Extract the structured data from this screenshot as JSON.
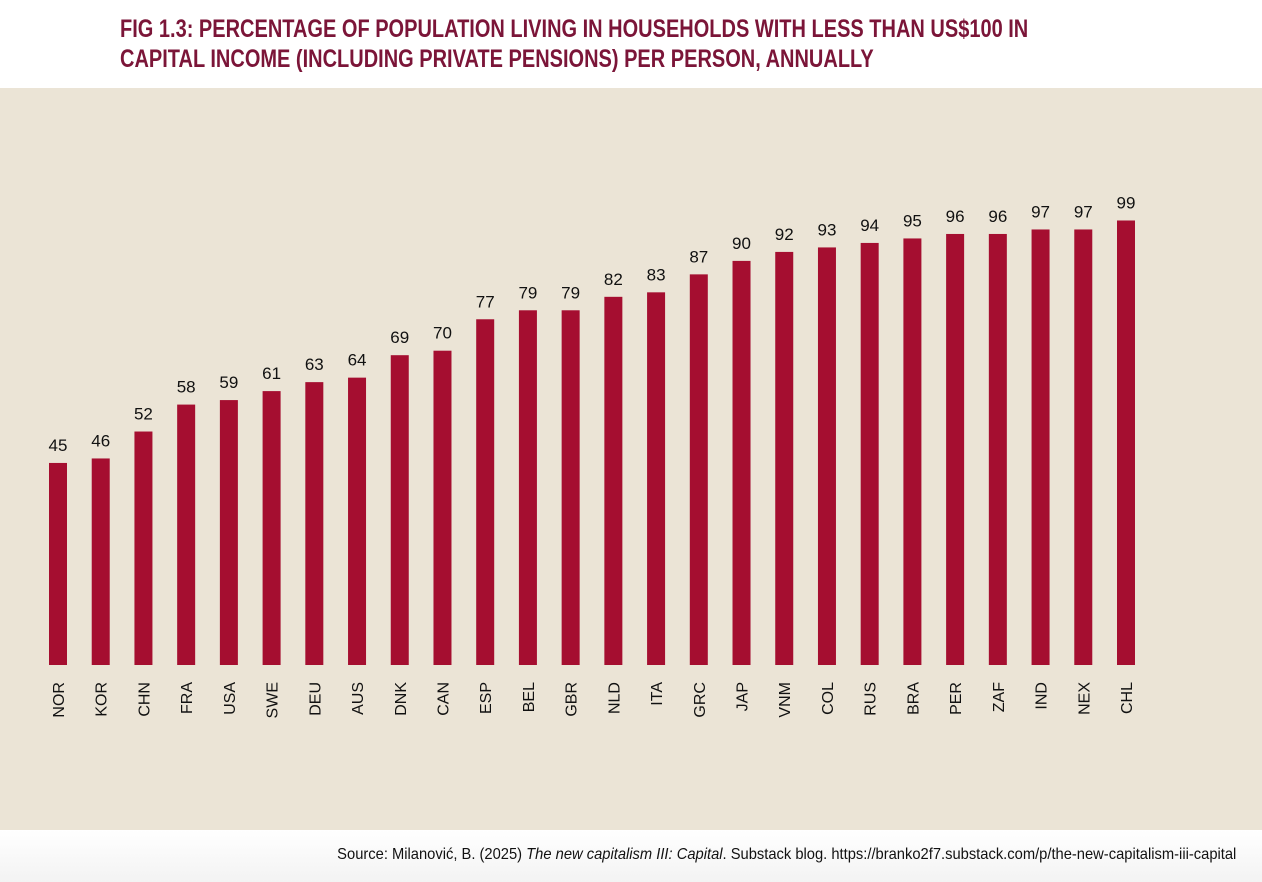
{
  "chart_data": {
    "type": "bar",
    "title_lines": [
      "FIG 1.3: PERCENTAGE OF POPULATION LIVING IN HOUSEHOLDS WITH LESS THAN US$100 IN",
      "CAPITAL INCOME (INCLUDING PRIVATE PENSIONS) PER PERSON, ANNUALLY"
    ],
    "categories": [
      "NOR",
      "KOR",
      "CHN",
      "FRA",
      "USA",
      "SWE",
      "DEU",
      "AUS",
      "DNK",
      "CAN",
      "ESP",
      "BEL",
      "GBR",
      "NLD",
      "ITA",
      "GRC",
      "JAP",
      "VNM",
      "COL",
      "RUS",
      "BRA",
      "PER",
      "ZAF",
      "IND",
      "NEX",
      "CHL"
    ],
    "values": [
      45,
      46,
      52,
      58,
      59,
      61,
      63,
      64,
      69,
      70,
      77,
      79,
      79,
      82,
      83,
      87,
      90,
      92,
      93,
      94,
      95,
      96,
      96,
      97,
      97,
      99
    ],
    "xlabel": "",
    "ylabel": "",
    "ylim": [
      0,
      100
    ],
    "grid": false,
    "bar_color": "#a50e30",
    "background_color": "#ebe4d6"
  },
  "source": {
    "prefix": "Source: Milanović, B. (2025) ",
    "italic": "The new capitalism III: Capital",
    "suffix": ". Substack blog. https://branko2f7.substack.com/p/the-new-capitalism-iii-capital"
  }
}
